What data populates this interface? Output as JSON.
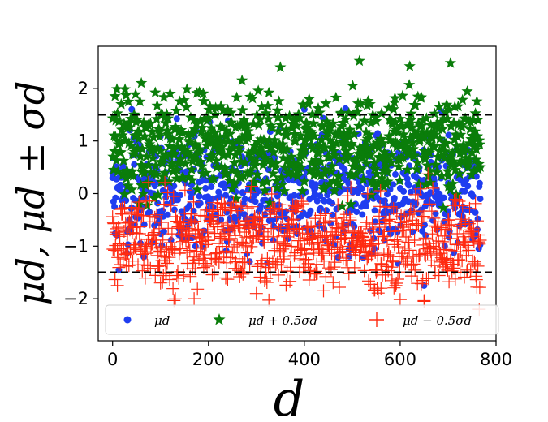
{
  "chart_data": {
    "type": "scatter",
    "title": "",
    "xlabel": "d",
    "ylabel": "μd,  μd ± σd",
    "xlim": [
      -30,
      800
    ],
    "ylim": [
      -2.8,
      2.8
    ],
    "x_ticks": [
      0,
      200,
      400,
      600,
      800
    ],
    "y_ticks": [
      -2,
      -1,
      0,
      1,
      2
    ],
    "grid": false,
    "legend_position": "bottom",
    "n_points": 768,
    "reference_lines": [
      {
        "y": 1.5,
        "style": "dashed",
        "color": "#000000"
      },
      {
        "y": -1.5,
        "style": "dashed",
        "color": "#000000"
      }
    ],
    "series": [
      {
        "name": "μd",
        "marker": "circle",
        "color": "#1f3df0",
        "center": 0.0,
        "spread": 0.55,
        "sample": [
          [
            0,
            0.3
          ],
          [
            40,
            1.6
          ],
          [
            100,
            0.2
          ],
          [
            200,
            -0.5
          ],
          [
            300,
            0.4
          ],
          [
            400,
            1.6
          ],
          [
            500,
            -0.3
          ],
          [
            600,
            0.1
          ],
          [
            650,
            -1.75
          ],
          [
            700,
            0.2
          ],
          [
            767,
            -0.1
          ]
        ]
      },
      {
        "name": "μd + 0.5σd",
        "marker": "star",
        "color": "#0a7d0a",
        "center": 0.95,
        "spread": 0.45,
        "sample": [
          [
            5,
            1.85
          ],
          [
            60,
            2.1
          ],
          [
            270,
            2.15
          ],
          [
            350,
            2.4
          ],
          [
            515,
            2.52
          ],
          [
            620,
            2.42
          ],
          [
            705,
            2.48
          ],
          [
            760,
            1.75
          ],
          [
            100,
            0.6
          ],
          [
            400,
            0.9
          ]
        ]
      },
      {
        "name": "μd − 0.5σd",
        "marker": "plus",
        "color": "#ff2a10",
        "center": -0.9,
        "spread": 0.45,
        "sample": [
          [
            10,
            -1.75
          ],
          [
            100,
            -1.7
          ],
          [
            170,
            -2.0
          ],
          [
            300,
            -1.9
          ],
          [
            440,
            -1.85
          ],
          [
            560,
            -1.8
          ],
          [
            650,
            -2.05
          ],
          [
            765,
            -2.2
          ],
          [
            50,
            -0.3
          ],
          [
            700,
            -0.5
          ]
        ]
      }
    ],
    "legend": [
      "μd",
      "μd + 0.5σd",
      "μd − 0.5σd"
    ]
  },
  "colors": {
    "blue": "#1f3df0",
    "green": "#0a7d0a",
    "red": "#ff2a10",
    "axes": "#000000"
  }
}
